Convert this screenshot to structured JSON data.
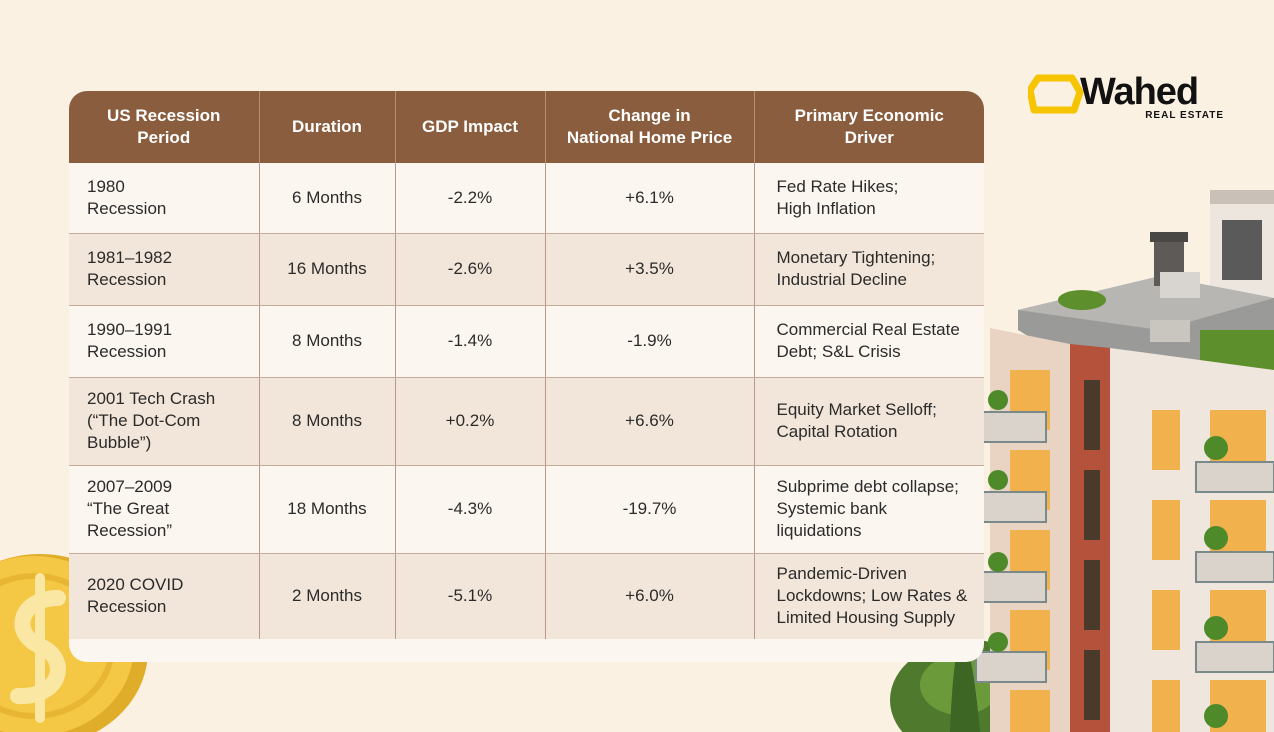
{
  "chart_data": {
    "type": "table",
    "columns": [
      "US Recession\nPeriod",
      "Duration",
      "GDP Impact",
      "Change in\nNational Home Price",
      "Primary Economic\nDriver"
    ],
    "rows": [
      [
        "1980\nRecession",
        "6 Months",
        "-2.2%",
        "+6.1%",
        "Fed Rate Hikes;\nHigh Inflation"
      ],
      [
        "1981–1982\nRecession",
        "16 Months",
        "-2.6%",
        "+3.5%",
        "Monetary Tightening;\nIndustrial Decline"
      ],
      [
        "1990–1991\nRecession",
        "8 Months",
        "-1.4%",
        "-1.9%",
        "Commercial Real Estate\nDebt; S&L Crisis"
      ],
      [
        "2001 Tech Crash\n(“The Dot-Com\nBubble”)",
        "8 Months",
        "+0.2%",
        "+6.6%",
        "Equity Market Selloff;\nCapital Rotation"
      ],
      [
        "2007–2009\n“The Great\nRecession”",
        "18 Months",
        "-4.3%",
        "-19.7%",
        "Subprime debt collapse;\nSystemic bank\nliquidations"
      ],
      [
        "2020 COVID\nRecession",
        "2 Months",
        "-5.1%",
        "+6.0%",
        "Pandemic-Driven\nLockdowns; Low Rates &\nLimited Housing Supply"
      ]
    ]
  },
  "logo": {
    "name": "Wahed",
    "sub": "REAL ESTATE"
  },
  "colors": {
    "background": "#fbf1e3",
    "header": "#895d3e",
    "row_light": "#fbf6ef",
    "row_dark": "#f1e6d9",
    "logo_accent": "#f6c400",
    "coin": "#f2c53d"
  },
  "icons": {
    "logo": "wahed-logo-icon",
    "coin": "coin-icon",
    "building": "building-illustration"
  }
}
